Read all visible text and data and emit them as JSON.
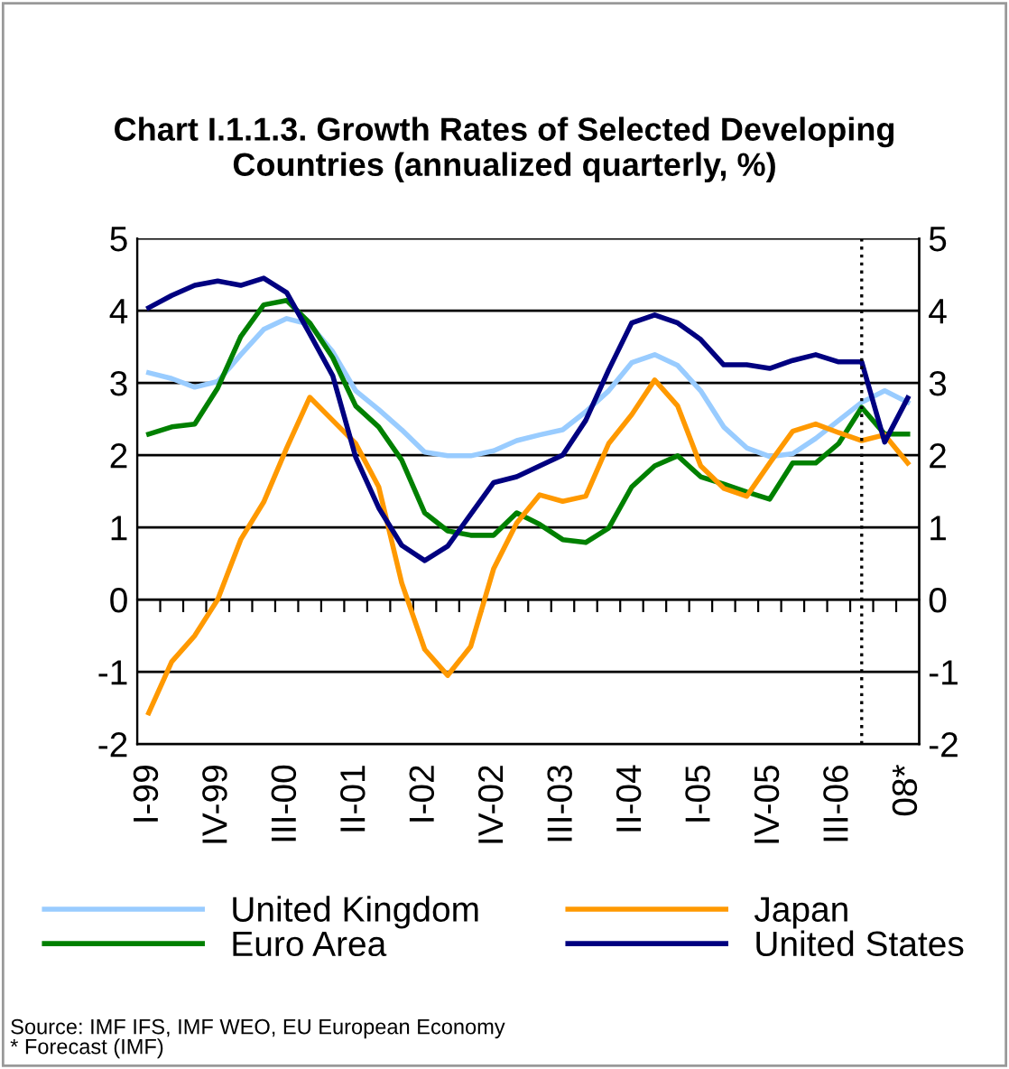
{
  "chart_data": {
    "type": "line",
    "title": "Chart I.1.1.3. Growth Rates of Selected Developing\nCountries (annualized quarterly, %)",
    "categories": [
      "I-99",
      null,
      null,
      "IV-99",
      null,
      null,
      "III-00",
      null,
      null,
      "II-01",
      null,
      null,
      "I-02",
      null,
      null,
      "IV-02",
      null,
      null,
      "III-03",
      null,
      null,
      "II-04",
      null,
      null,
      "I-05",
      null,
      null,
      "IV-05",
      null,
      null,
      "III-06",
      null,
      null,
      "08*"
    ],
    "series": [
      {
        "name": "United Kingdom",
        "color": "#99ccff",
        "values": [
          3.14,
          3.06,
          2.94,
          3.02,
          3.39,
          3.74,
          3.89,
          3.81,
          3.43,
          2.89,
          2.63,
          2.35,
          2.04,
          1.99,
          1.99,
          2.06,
          2.2,
          2.28,
          2.35,
          2.6,
          2.89,
          3.28,
          3.39,
          3.24,
          2.89,
          2.39,
          2.1,
          1.98,
          2.02,
          2.23,
          2.48,
          2.73,
          2.89,
          2.73
        ]
      },
      {
        "name": "Euro Area",
        "color": "#008000",
        "values": [
          2.29,
          2.39,
          2.43,
          2.93,
          3.64,
          4.08,
          4.14,
          3.83,
          3.35,
          2.68,
          2.39,
          1.93,
          1.2,
          0.95,
          0.89,
          0.89,
          1.2,
          1.04,
          0.83,
          0.79,
          0.99,
          1.56,
          1.85,
          1.99,
          1.7,
          1.6,
          1.49,
          1.39,
          1.89,
          1.89,
          2.16,
          2.66,
          2.29,
          2.29
        ]
      },
      {
        "name": "Japan",
        "color": "#ff9900",
        "values": [
          -1.57,
          -0.86,
          -0.5,
          0.0,
          0.83,
          1.35,
          2.1,
          2.8,
          2.48,
          2.16,
          1.56,
          0.23,
          -0.69,
          -1.05,
          -0.65,
          0.43,
          1.06,
          1.45,
          1.36,
          1.43,
          2.16,
          2.56,
          3.04,
          2.68,
          1.85,
          1.54,
          1.43,
          1.89,
          2.33,
          2.43,
          2.31,
          2.2,
          2.28,
          1.89
        ]
      },
      {
        "name": "United States",
        "color": "#000080",
        "values": [
          4.04,
          4.21,
          4.35,
          4.41,
          4.35,
          4.45,
          4.25,
          3.68,
          3.1,
          1.97,
          1.27,
          0.75,
          0.54,
          0.74,
          1.18,
          1.62,
          1.7,
          1.85,
          2.0,
          2.48,
          3.18,
          3.83,
          3.94,
          3.83,
          3.6,
          3.25,
          3.25,
          3.2,
          3.31,
          3.39,
          3.29,
          3.29,
          2.18,
          2.79
        ]
      }
    ],
    "ylim": [
      -2,
      5
    ],
    "yticks": [
      -2,
      -1,
      0,
      1,
      2,
      3,
      4,
      5
    ],
    "y2lim": [
      -2,
      5
    ],
    "y2ticks": [
      -2,
      -1,
      0,
      1,
      2,
      3,
      4,
      5
    ],
    "grid": "y",
    "legend": "bottom",
    "marker": "none",
    "line_style": "solid",
    "annotations": [
      "Source: IMF IFS, IMF WEO, EU European Economy\n* Forecast (IMF)"
    ]
  }
}
